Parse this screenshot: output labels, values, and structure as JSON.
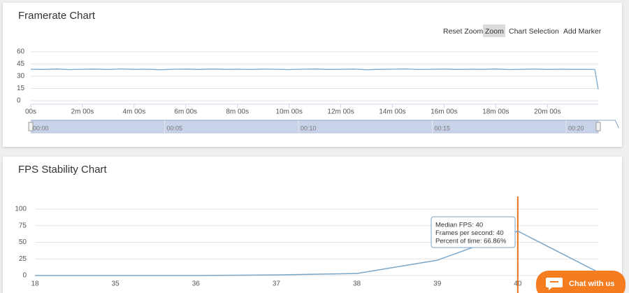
{
  "chart_data": [
    {
      "type": "line",
      "title": "Framerate Chart",
      "toolbar": [
        "Reset Zoom",
        "Zoom",
        "Chart Selection",
        "Add Marker"
      ],
      "active_button": "Zoom",
      "x": [
        0,
        30,
        60,
        90,
        120,
        150,
        180,
        210,
        240,
        270,
        300,
        330,
        360,
        390,
        420,
        450,
        480,
        510,
        540,
        570,
        600,
        630,
        660,
        690,
        720,
        750,
        780,
        810,
        840,
        870,
        900,
        930,
        960,
        990,
        1020,
        1050,
        1080,
        1110,
        1140,
        1170,
        1200,
        1230,
        1260,
        1290,
        1310,
        1318
      ],
      "series": [
        {
          "color": "#7aa6c8",
          "values": [
            38.6,
            38.3,
            38.8,
            38.1,
            38.5,
            38.7,
            38.2,
            38.9,
            38.4,
            38.6,
            38.0,
            38.5,
            38.7,
            38.3,
            38.8,
            38.4,
            38.6,
            38.2,
            38.7,
            38.5,
            38.1,
            38.6,
            38.8,
            38.3,
            38.5,
            38.7,
            38.0,
            38.4,
            38.6,
            38.9,
            38.2,
            38.5,
            38.7,
            38.3,
            38.6,
            38.4,
            38.8,
            38.1,
            38.5,
            38.7,
            38.3,
            38.6,
            38.4,
            38.5,
            38.2,
            14
          ]
        }
      ],
      "xlim": [
        0,
        1318
      ],
      "ylim": [
        0,
        60
      ],
      "yticks": [
        0,
        15,
        30,
        45,
        60
      ],
      "grid": true,
      "xticks": [
        {
          "value": 0,
          "label": "00s"
        },
        {
          "value": 120,
          "label": "2m 00s"
        },
        {
          "value": 240,
          "label": "4m 00s"
        },
        {
          "value": 360,
          "label": "6m 00s"
        },
        {
          "value": 480,
          "label": "8m 00s"
        },
        {
          "value": 600,
          "label": "10m 00s"
        },
        {
          "value": 720,
          "label": "12m 00s"
        },
        {
          "value": 840,
          "label": "14m 00s"
        },
        {
          "value": 960,
          "label": "16m 00s"
        },
        {
          "value": 1080,
          "label": "18m 00s"
        },
        {
          "value": 1200,
          "label": "20m 00s"
        }
      ],
      "navigator": {
        "xlim": [
          0,
          1272
        ],
        "xticks": [
          {
            "value": 0,
            "label": "00:00"
          },
          {
            "value": 300,
            "label": "00:05"
          },
          {
            "value": 600,
            "label": "00:10"
          },
          {
            "value": 900,
            "label": "00:15"
          },
          {
            "value": 1200,
            "label": "00:20"
          }
        ]
      }
    },
    {
      "type": "line",
      "title": "FPS Stability Chart",
      "categories": [
        "18",
        "35",
        "36",
        "37",
        "38",
        "39",
        "40",
        null
      ],
      "series": [
        {
          "color": "#7aa6c8",
          "values": [
            0,
            0,
            0,
            1,
            3,
            23,
            66.86,
            5
          ]
        }
      ],
      "ylim": [
        0,
        100
      ],
      "yticks": [
        0,
        25,
        50,
        75,
        100
      ],
      "grid": true,
      "median_category": "40",
      "median_color": "#e8711c",
      "tooltip": [
        "Median FPS: 40",
        "Frames per second: 40",
        "Percent of time: 66.86%"
      ]
    }
  ],
  "chat_button": "Chat with us"
}
